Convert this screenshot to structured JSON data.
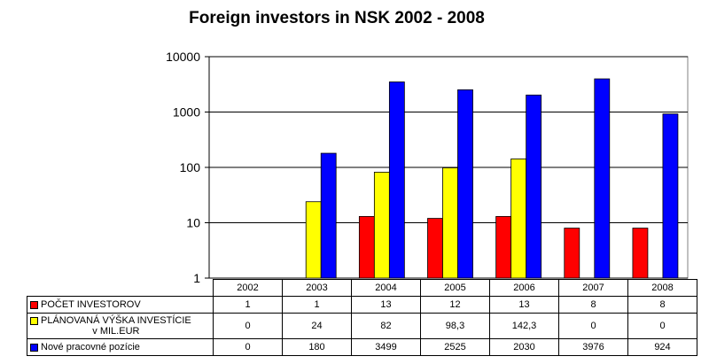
{
  "chart_data": {
    "type": "bar",
    "title": "Foreign investors in NSK 2002 - 2008",
    "categories": [
      "2002",
      "2003",
      "2004",
      "2005",
      "2006",
      "2007",
      "2008"
    ],
    "y_scale": "log",
    "ylim": [
      1,
      10000
    ],
    "y_ticks": [
      "1",
      "10",
      "100",
      "1000",
      "10000"
    ],
    "grid": true,
    "legend_placement": "data table below plot",
    "series": [
      {
        "name": "POČET INVESTOROV",
        "color": "#ff0000",
        "values": [
          1,
          1,
          13,
          12,
          13,
          8,
          8
        ],
        "table_values": [
          "1",
          "1",
          "13",
          "12",
          "13",
          "8",
          "8"
        ]
      },
      {
        "name": "PLÁNOVANÁ VÝŠKA INVESTÍCIE v MIL.EUR",
        "name_line1": "PLÁNOVANÁ VÝŠKA INVESTÍCIE",
        "name_line2": "v MIL.EUR",
        "color": "#ffff00",
        "values": [
          0,
          24,
          82,
          98.3,
          142.3,
          0,
          0
        ],
        "table_values": [
          "0",
          "24",
          "82",
          "98,3",
          "142,3",
          "0",
          "0"
        ]
      },
      {
        "name": "Nové pracovné pozície",
        "color": "#0000ff",
        "values": [
          0,
          180,
          3499,
          2525,
          2030,
          3976,
          924
        ],
        "table_values": [
          "0",
          "180",
          "3499",
          "2525",
          "2030",
          "3976",
          "924"
        ]
      }
    ]
  }
}
